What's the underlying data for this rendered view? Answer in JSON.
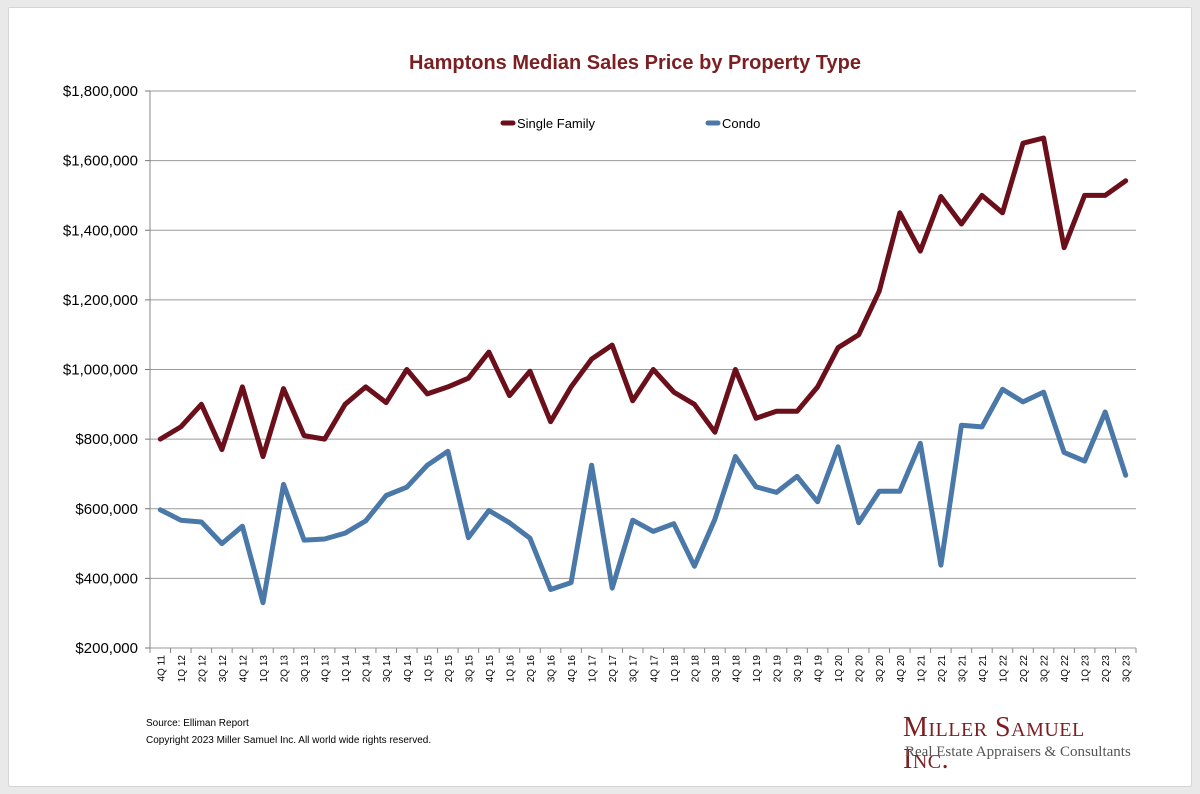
{
  "chart_data": {
    "type": "line",
    "title": "Hamptons Median Sales Price by Property Type",
    "xlabel": "",
    "ylabel": "",
    "ylim": [
      200000,
      1800000
    ],
    "yticks": [
      "$200,000",
      "$400,000",
      "$600,000",
      "$800,000",
      "$1,000,000",
      "$1,200,000",
      "$1,400,000",
      "$1,600,000",
      "$1,800,000"
    ],
    "grid": true,
    "legend_position": "top",
    "categories": [
      "4Q 11",
      "1Q 12",
      "2Q 12",
      "3Q 12",
      "4Q 12",
      "1Q 13",
      "2Q 13",
      "3Q 13",
      "4Q 13",
      "1Q 14",
      "2Q 14",
      "3Q 14",
      "4Q 14",
      "1Q 15",
      "2Q 15",
      "3Q 15",
      "4Q 15",
      "1Q 16",
      "2Q 16",
      "3Q 16",
      "4Q 16",
      "1Q 17",
      "2Q 17",
      "3Q 17",
      "4Q 17",
      "1Q 18",
      "2Q 18",
      "3Q 18",
      "4Q 18",
      "1Q 19",
      "2Q 19",
      "3Q 19",
      "4Q 19",
      "1Q 20",
      "2Q 20",
      "3Q 20",
      "4Q 20",
      "1Q 21",
      "2Q 21",
      "3Q 21",
      "4Q 21",
      "1Q 22",
      "2Q 22",
      "3Q 22",
      "4Q 22",
      "1Q 23",
      "2Q 23",
      "3Q 23"
    ],
    "series": [
      {
        "name": "Single Family",
        "color": "#6b0f1a",
        "values": [
          800000,
          835000,
          900000,
          770000,
          950000,
          750000,
          945000,
          810000,
          800000,
          900000,
          950000,
          905000,
          1000000,
          930000,
          950000,
          975000,
          1050000,
          925000,
          995000,
          850000,
          950000,
          1030000,
          1070000,
          910000,
          1000000,
          935000,
          900000,
          820000,
          1000000,
          860000,
          880000,
          880000,
          950000,
          1063000,
          1100000,
          1225000,
          1450000,
          1340000,
          1497000,
          1418000,
          1500000,
          1450000,
          1650000,
          1665000,
          1350000,
          1500000,
          1500000,
          1542000
        ]
      },
      {
        "name": "Condo",
        "color": "#4a78a8",
        "values": [
          597000,
          567000,
          562000,
          500000,
          550000,
          330000,
          670000,
          510000,
          513000,
          530000,
          565000,
          638000,
          662000,
          725000,
          765000,
          517000,
          595000,
          560000,
          515000,
          368000,
          388000,
          725000,
          372000,
          567000,
          535000,
          557000,
          435000,
          570000,
          750000,
          663000,
          647000,
          693000,
          620000,
          778000,
          560000,
          650000,
          650000,
          788000,
          438000,
          840000,
          835000,
          943000,
          907000,
          935000,
          762000,
          737000,
          878000,
          696000
        ]
      }
    ]
  },
  "footer": {
    "source": "Source: Elliman Report",
    "copyright": "Copyright 2023 Miller Samuel Inc.  All world wide rights reserved."
  },
  "logo": {
    "name": "Miller Samuel Inc.",
    "subtitle": "Real Estate Appraisers & Consultants"
  },
  "colors": {
    "title": "#7b1f22",
    "grid": "#9a9a9a"
  }
}
